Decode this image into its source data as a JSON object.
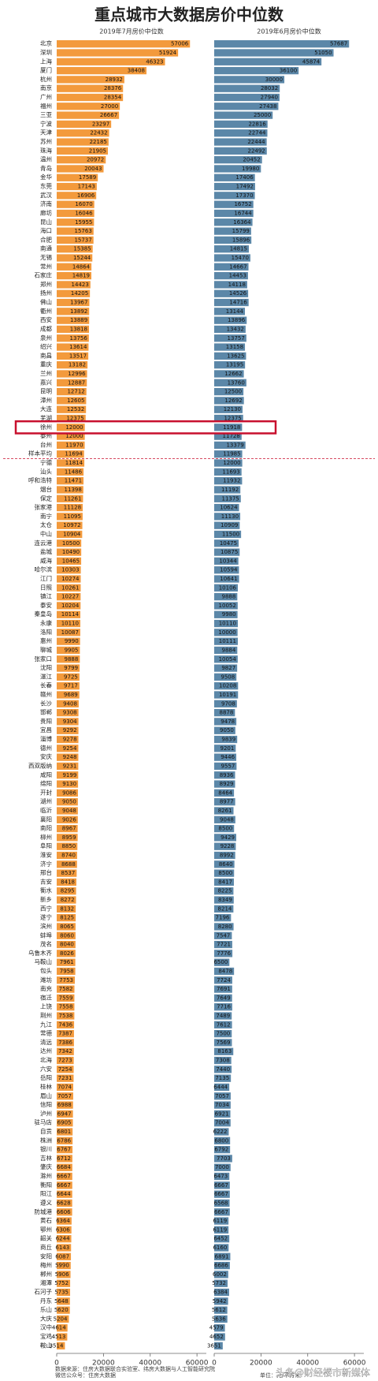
{
  "chart_data": {
    "type": "bar",
    "orientation": "horizontal",
    "title": "重点城市大数据房价中位数",
    "categories": [
      "北京",
      "深圳",
      "上海",
      "厦门",
      "杭州",
      "南京",
      "广州",
      "福州",
      "三亚",
      "宁波",
      "天津",
      "苏州",
      "珠海",
      "温州",
      "青岛",
      "金华",
      "东莞",
      "武汉",
      "济南",
      "廊坊",
      "昆山",
      "海口",
      "合肥",
      "南通",
      "无锡",
      "常州",
      "石家庄",
      "郑州",
      "扬州",
      "佛山",
      "衢州",
      "西安",
      "成都",
      "泉州",
      "绍兴",
      "南昌",
      "重庆",
      "兰州",
      "嘉兴",
      "昆明",
      "漳州",
      "大连",
      "芜湖",
      "徐州",
      "泰州",
      "台州",
      "样本平均",
      "宁德",
      "汕头",
      "呼和浩特",
      "烟台",
      "保定",
      "张家港",
      "南宁",
      "太仓",
      "中山",
      "连云港",
      "盐城",
      "威海",
      "哈尔滨",
      "江门",
      "日照",
      "镇江",
      "泰安",
      "秦皇岛",
      "永康",
      "洛阳",
      "惠州",
      "聊城",
      "张家口",
      "沈阳",
      "湛江",
      "长春",
      "赣州",
      "长沙",
      "邯郸",
      "贵阳",
      "宜昌",
      "淄博",
      "德州",
      "安庆",
      "西双版纳",
      "咸阳",
      "绵阳",
      "开封",
      "湖州",
      "临沂",
      "襄阳",
      "南阳",
      "柳州",
      "阜阳",
      "淮安",
      "济宁",
      "邢台",
      "吉安",
      "衡水",
      "新乡",
      "西宁",
      "遂宁",
      "滨州",
      "蚌埠",
      "茂名",
      "乌鲁木齐",
      "马鞍山",
      "包头",
      "潍坊",
      "南充",
      "宿迁",
      "上饶",
      "荆州",
      "九江",
      "常德",
      "清远",
      "达州",
      "北海",
      "六安",
      "岳阳",
      "桂林",
      "眉山",
      "信阳",
      "泸州",
      "驻马店",
      "自贡",
      "株洲",
      "银川",
      "吉林",
      "肇庆",
      "滁州",
      "衡阳",
      "阳江",
      "遵义",
      "防城港",
      "黄石",
      "鄂州",
      "韶关",
      "商丘",
      "安阳",
      "梅州",
      "郴州",
      "湘潭",
      "石河子",
      "丹东",
      "乐山",
      "大庆",
      "汉中",
      "宝鸡",
      "鞍山"
    ],
    "series": [
      {
        "name": "2019年7月房价中位数",
        "color": "#f39a3c",
        "values": [
          57006,
          51924,
          46323,
          38408,
          28932,
          28376,
          28354,
          27000,
          26667,
          23297,
          22432,
          22185,
          21905,
          20972,
          20043,
          17589,
          17143,
          16906,
          16070,
          16046,
          15955,
          15763,
          15737,
          15385,
          15244,
          14864,
          14819,
          14423,
          14205,
          13967,
          13892,
          13889,
          13818,
          13756,
          13614,
          13517,
          13182,
          12996,
          12887,
          12712,
          12605,
          12532,
          12375,
          12000,
          12000,
          11970,
          11694,
          11814,
          11486,
          11471,
          11398,
          11261,
          11128,
          11095,
          10972,
          10904,
          10500,
          10490,
          10465,
          10303,
          10274,
          10261,
          10227,
          10204,
          10114,
          10110,
          10087,
          9990,
          9905,
          9888,
          9799,
          9725,
          9717,
          9689,
          9408,
          9308,
          9304,
          9292,
          9278,
          9254,
          9248,
          9231,
          9199,
          9130,
          9086,
          9050,
          9048,
          9026,
          8967,
          8959,
          8850,
          8740,
          8688,
          8537,
          8418,
          8295,
          8272,
          8132,
          8125,
          8065,
          8060,
          8040,
          8026,
          7961,
          7958,
          7753,
          7582,
          7559,
          7558,
          7538,
          7436,
          7387,
          7386,
          7342,
          7273,
          7254,
          7231,
          7074,
          7057,
          6988,
          6947,
          6905,
          6801,
          6786,
          6767,
          6712,
          6684,
          6667,
          6667,
          6644,
          6628,
          6606,
          6364,
          6306,
          6244,
          6143,
          6087,
          5990,
          5906,
          5752,
          5735,
          5648,
          5620,
          5204,
          4614,
          4513,
          3514
        ]
      },
      {
        "name": "2019年6月房价中位数",
        "color": "#5b87a8",
        "values": [
          57687,
          51050,
          45874,
          36100,
          30000,
          28032,
          27940,
          27438,
          25000,
          22816,
          22744,
          22444,
          22492,
          20452,
          19980,
          17406,
          17492,
          17370,
          16752,
          16744,
          16364,
          15799,
          15896,
          14815,
          15470,
          14667,
          14453,
          14118,
          14526,
          14716,
          13144,
          13896,
          13432,
          13757,
          13158,
          13625,
          13195,
          12662,
          13760,
          12500,
          12692,
          12130,
          12375,
          11918,
          11728,
          13379,
          11985,
          12000,
          11693,
          11932,
          11192,
          11375,
          10624,
          11130,
          10909,
          11500,
          10475,
          10875,
          10344,
          10594,
          10641,
          10106,
          9888,
          10052,
          9980,
          10110,
          10000,
          10111,
          9884,
          10054,
          9827,
          9508,
          10208,
          10191,
          9708,
          8878,
          9478,
          9050,
          9839,
          9201,
          9446,
          9557,
          8936,
          8929,
          8464,
          8977,
          8261,
          9048,
          8500,
          9429,
          9228,
          8992,
          8640,
          8500,
          8417,
          8225,
          8349,
          8214,
          7196,
          8280,
          7547,
          7721,
          7776,
          6500,
          8478,
          7724,
          7691,
          7649,
          7716,
          7489,
          7612,
          7500,
          7569,
          8163,
          7308,
          7440,
          7135,
          6444,
          7057,
          7034,
          6921,
          7004,
          6222,
          6800,
          6792,
          7703,
          7000,
          6473,
          6667,
          6667,
          6568,
          6667,
          6119,
          6119,
          6452,
          6160,
          6891,
          6686,
          6002,
          5732,
          6384,
          5942,
          5612,
          5636,
          4579,
          4652,
          3651
        ]
      }
    ],
    "xlim": [
      0,
      64000
    ],
    "xticks": [
      0,
      20000,
      40000,
      60000
    ],
    "highlight_category": "徐州",
    "average_category": "样本平均",
    "notes": [
      "数据来源：住房大数据联合实验室、纬房大数据与人工智能研究院",
      "微信公众号：住房大数据",
      "单位：元/平方米"
    ],
    "watermark": "头条@财经楼市新媒体"
  }
}
